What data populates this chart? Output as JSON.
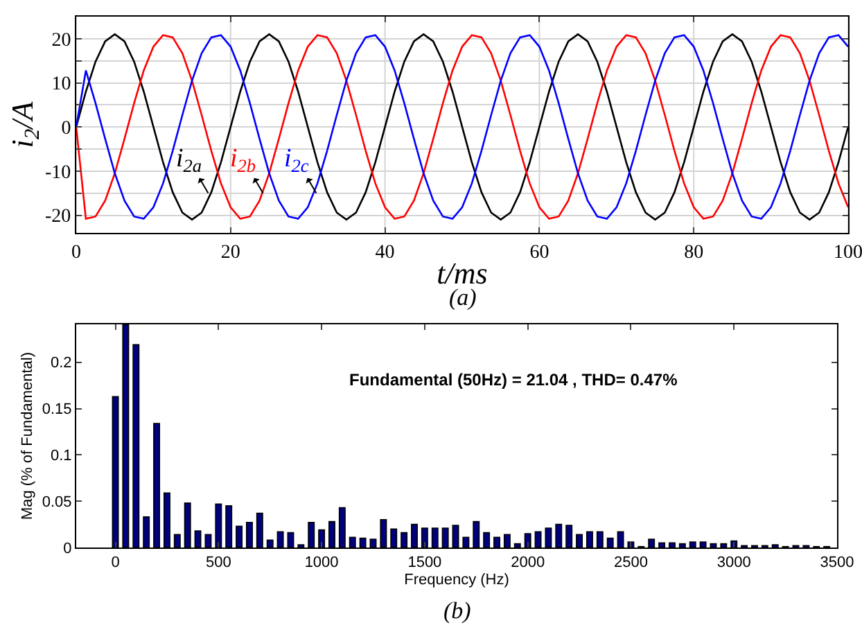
{
  "chart_data": [
    {
      "type": "line",
      "xlabel": "t/ms",
      "ylabel": "i$_{2}$/A",
      "xlim": [
        0,
        100
      ],
      "xticks": [
        0,
        20,
        40,
        60,
        80,
        100
      ],
      "ylim": [
        -24,
        25
      ],
      "yticks": [
        -20,
        {
          "value": -15,
          "label": null
        },
        -10,
        {
          "value": -5,
          "label": null
        },
        0,
        {
          "value": 5,
          "label": null
        },
        10,
        {
          "value": 15,
          "label": null
        },
        20
      ],
      "grid": true,
      "x": [
        0,
        1.25,
        2.5,
        3.75,
        5,
        6.25,
        7.5,
        8.75,
        10,
        11.25,
        12.5,
        13.75,
        15,
        16.25,
        17.5,
        18.75,
        20,
        21.25,
        22.5,
        23.75,
        25,
        26.25,
        27.5,
        28.75,
        30,
        31.25,
        32.5,
        33.75,
        35,
        36.25,
        37.5,
        38.75,
        40,
        41.25,
        42.5,
        43.75,
        45,
        46.25,
        47.5,
        48.75,
        50,
        51.25,
        52.5,
        53.75,
        55,
        56.25,
        57.5,
        58.75,
        60,
        61.25,
        62.5,
        63.75,
        65,
        66.25,
        67.5,
        68.75,
        70,
        71.25,
        72.5,
        73.75,
        75,
        76.25,
        77.5,
        78.75,
        80,
        81.25,
        82.5,
        83.75,
        85,
        86.25,
        87.5,
        88.75,
        90,
        91.25,
        92.5,
        93.75,
        95,
        96.25,
        97.5,
        98.75,
        100
      ],
      "series": [
        {
          "color": "#000000",
          "values": [
            0,
            8,
            14.8,
            19.4,
            21,
            19.4,
            14.8,
            8,
            0,
            -8,
            -14.8,
            -19.4,
            -21,
            -19.4,
            -14.8,
            -8,
            0,
            8,
            14.8,
            19.4,
            21,
            19.4,
            14.8,
            8,
            0,
            -8,
            -14.8,
            -19.4,
            -21,
            -19.4,
            -14.8,
            -8,
            0,
            8,
            14.8,
            19.4,
            21,
            19.4,
            14.8,
            8,
            0,
            -8,
            -14.8,
            -19.4,
            -21,
            -19.4,
            -14.8,
            -8,
            0,
            8,
            14.8,
            19.4,
            21,
            19.4,
            14.8,
            8,
            0,
            -8,
            -14.8,
            -19.4,
            -21,
            -19.4,
            -14.8,
            -8,
            0,
            8,
            14.8,
            19.4,
            21,
            19.4,
            14.8,
            8,
            0,
            -8,
            -14.8,
            -19.4,
            -21,
            -19.4,
            -14.8,
            -8,
            0
          ]
        },
        {
          "color": "#ff0000",
          "values": [
            0,
            -20.8,
            -20.3,
            -16.7,
            -10.5,
            -2.7,
            5.4,
            12.8,
            18.2,
            20.8,
            20.3,
            16.7,
            10.5,
            2.7,
            -5.4,
            -12.8,
            -18.2,
            -20.8,
            -20.3,
            -16.7,
            -10.5,
            -2.7,
            5.4,
            12.8,
            18.2,
            20.8,
            20.3,
            16.7,
            10.5,
            2.7,
            -5.4,
            -12.8,
            -18.2,
            -20.8,
            -20.3,
            -16.7,
            -10.5,
            -2.7,
            5.4,
            12.8,
            18.2,
            20.8,
            20.3,
            16.7,
            10.5,
            2.7,
            -5.4,
            -12.8,
            -18.2,
            -20.8,
            -20.3,
            -16.7,
            -10.5,
            -2.7,
            5.4,
            12.8,
            18.2,
            20.8,
            20.3,
            16.7,
            10.5,
            2.7,
            -5.4,
            -12.8,
            -18.2,
            -20.8,
            -20.3,
            -16.7,
            -10.5,
            -2.7,
            5.4,
            12.8,
            18.2,
            20.8,
            20.3,
            16.7,
            10.5,
            2.7,
            -5.4,
            -12.8,
            -18.2
          ]
        },
        {
          "color": "#0000ff",
          "values": [
            0,
            12.8,
            5.4,
            -2.7,
            -10.5,
            -16.7,
            -20.3,
            -20.8,
            -18.2,
            -12.8,
            -5.4,
            2.7,
            10.5,
            16.7,
            20.3,
            20.8,
            18.2,
            12.8,
            5.4,
            -2.7,
            -10.5,
            -16.7,
            -20.3,
            -20.8,
            -18.2,
            -12.8,
            -5.4,
            2.7,
            10.5,
            16.7,
            20.3,
            20.8,
            18.2,
            12.8,
            5.4,
            -2.7,
            -10.5,
            -16.7,
            -20.3,
            -20.8,
            -18.2,
            -12.8,
            -5.4,
            2.7,
            10.5,
            16.7,
            20.3,
            20.8,
            18.2,
            12.8,
            5.4,
            -2.7,
            -10.5,
            -16.7,
            -20.3,
            -20.8,
            -18.2,
            -12.8,
            -5.4,
            2.7,
            10.5,
            16.7,
            20.3,
            20.8,
            18.2,
            12.8,
            5.4,
            -2.7,
            -10.5,
            -16.7,
            -20.3,
            -20.8,
            -18.2,
            -12.8,
            -5.4,
            2.7,
            10.5,
            16.7,
            20.3,
            20.8,
            18.2
          ]
        }
      ],
      "annotations": [
        {
          "text": "i$_{2a}$",
          "x": 17.1,
          "y": -15
        },
        {
          "text": "i$_{2b}$",
          "x": 24.2,
          "y": -15
        },
        {
          "text": "i$_{2c}$",
          "x": 31.1,
          "y": -15
        },
        "(a)"
      ]
    },
    {
      "type": "bar",
      "xlabel": "Frequency (Hz)",
      "ylabel": "Mag (% of Fundamental)",
      "xlim": [
        -190,
        3500
      ],
      "xticks": [
        0,
        500,
        1000,
        1500,
        2000,
        2500,
        3000,
        3500
      ],
      "ylim": [
        0,
        0.241
      ],
      "yticks": [
        0,
        0.05,
        0.1,
        0.15,
        0.2
      ],
      "x": [
        0,
        50,
        100,
        150,
        200,
        250,
        300,
        350,
        400,
        450,
        500,
        550,
        600,
        650,
        700,
        750,
        800,
        850,
        900,
        950,
        1000,
        1050,
        1100,
        1150,
        1200,
        1250,
        1300,
        1350,
        1400,
        1450,
        1500,
        1550,
        1600,
        1650,
        1700,
        1750,
        1800,
        1850,
        1900,
        1950,
        2000,
        2050,
        2100,
        2150,
        2200,
        2250,
        2300,
        2350,
        2400,
        2450,
        2500,
        2550,
        2600,
        2650,
        2700,
        2750,
        2800,
        2850,
        2900,
        2950,
        3000,
        3050,
        3100,
        3150,
        3200,
        3250,
        3300,
        3350,
        3400,
        3450
      ],
      "series": [
        {
          "color": "#00007f",
          "values": [
            0.163,
            0.241,
            0.219,
            0.033,
            0.134,
            0.059,
            0.014,
            0.048,
            0.018,
            0.014,
            0.047,
            0.045,
            0.023,
            0.027,
            0.037,
            0.008,
            0.017,
            0.016,
            0.003,
            0.027,
            0.019,
            0.028,
            0.043,
            0.011,
            0.01,
            0.009,
            0.03,
            0.02,
            0.016,
            0.025,
            0.021,
            0.021,
            0.021,
            0.024,
            0.011,
            0.028,
            0.016,
            0.011,
            0.014,
            0.004,
            0.015,
            0.017,
            0.021,
            0.025,
            0.024,
            0.014,
            0.017,
            0.017,
            0.01,
            0.017,
            0.006,
            0.001,
            0.009,
            0.005,
            0.005,
            0.004,
            0.006,
            0.006,
            0.004,
            0.004,
            0.007,
            0.002,
            0.002,
            0.002,
            0.003,
            0.001,
            0.002,
            0.002,
            0.001,
            0.001
          ]
        }
      ],
      "annotations": [
        "Fundamental (50Hz) = 21.04 , THD= 0.47%",
        "(b)"
      ]
    }
  ]
}
